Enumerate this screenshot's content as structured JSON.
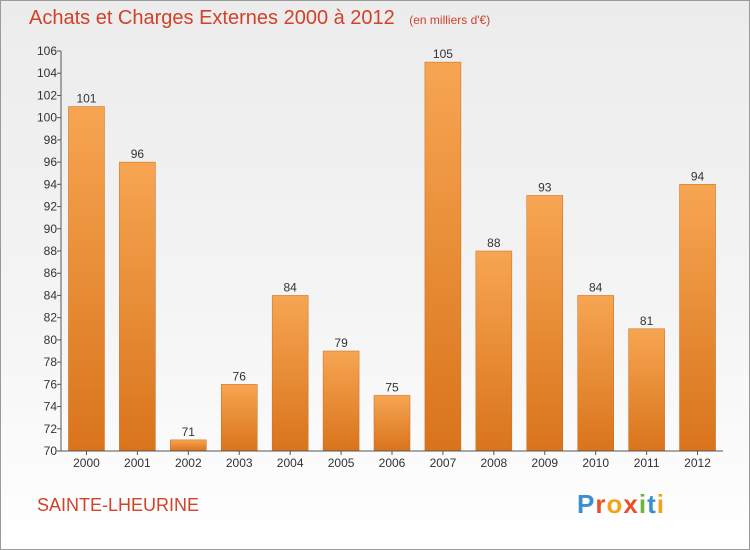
{
  "header": {
    "title": "Achats et Charges Externes 2000 à 2012",
    "subtitle": "(en milliers d'€)"
  },
  "footer": {
    "commune": "SAINTE-LHEURINE",
    "logo_text": "Proxiti"
  },
  "colors": {
    "accent": "#d0422a",
    "bar_top": "#f7a552",
    "bar_bottom": "#d9741c"
  },
  "chart_data": {
    "type": "bar",
    "title": "Achats et Charges Externes 2000 à 2012",
    "subtitle": "(en milliers d'€)",
    "xlabel": "",
    "ylabel": "",
    "categories": [
      "2000",
      "2001",
      "2002",
      "2003",
      "2004",
      "2005",
      "2006",
      "2007",
      "2008",
      "2009",
      "2010",
      "2011",
      "2012"
    ],
    "values": [
      101,
      96,
      71,
      76,
      84,
      79,
      75,
      105,
      88,
      93,
      84,
      81,
      94
    ],
    "ylim": [
      70,
      106
    ],
    "yticks": [
      70,
      72,
      74,
      76,
      78,
      80,
      82,
      84,
      86,
      88,
      90,
      92,
      94,
      96,
      98,
      100,
      102,
      104,
      106
    ],
    "grid": false,
    "legend": "none"
  }
}
